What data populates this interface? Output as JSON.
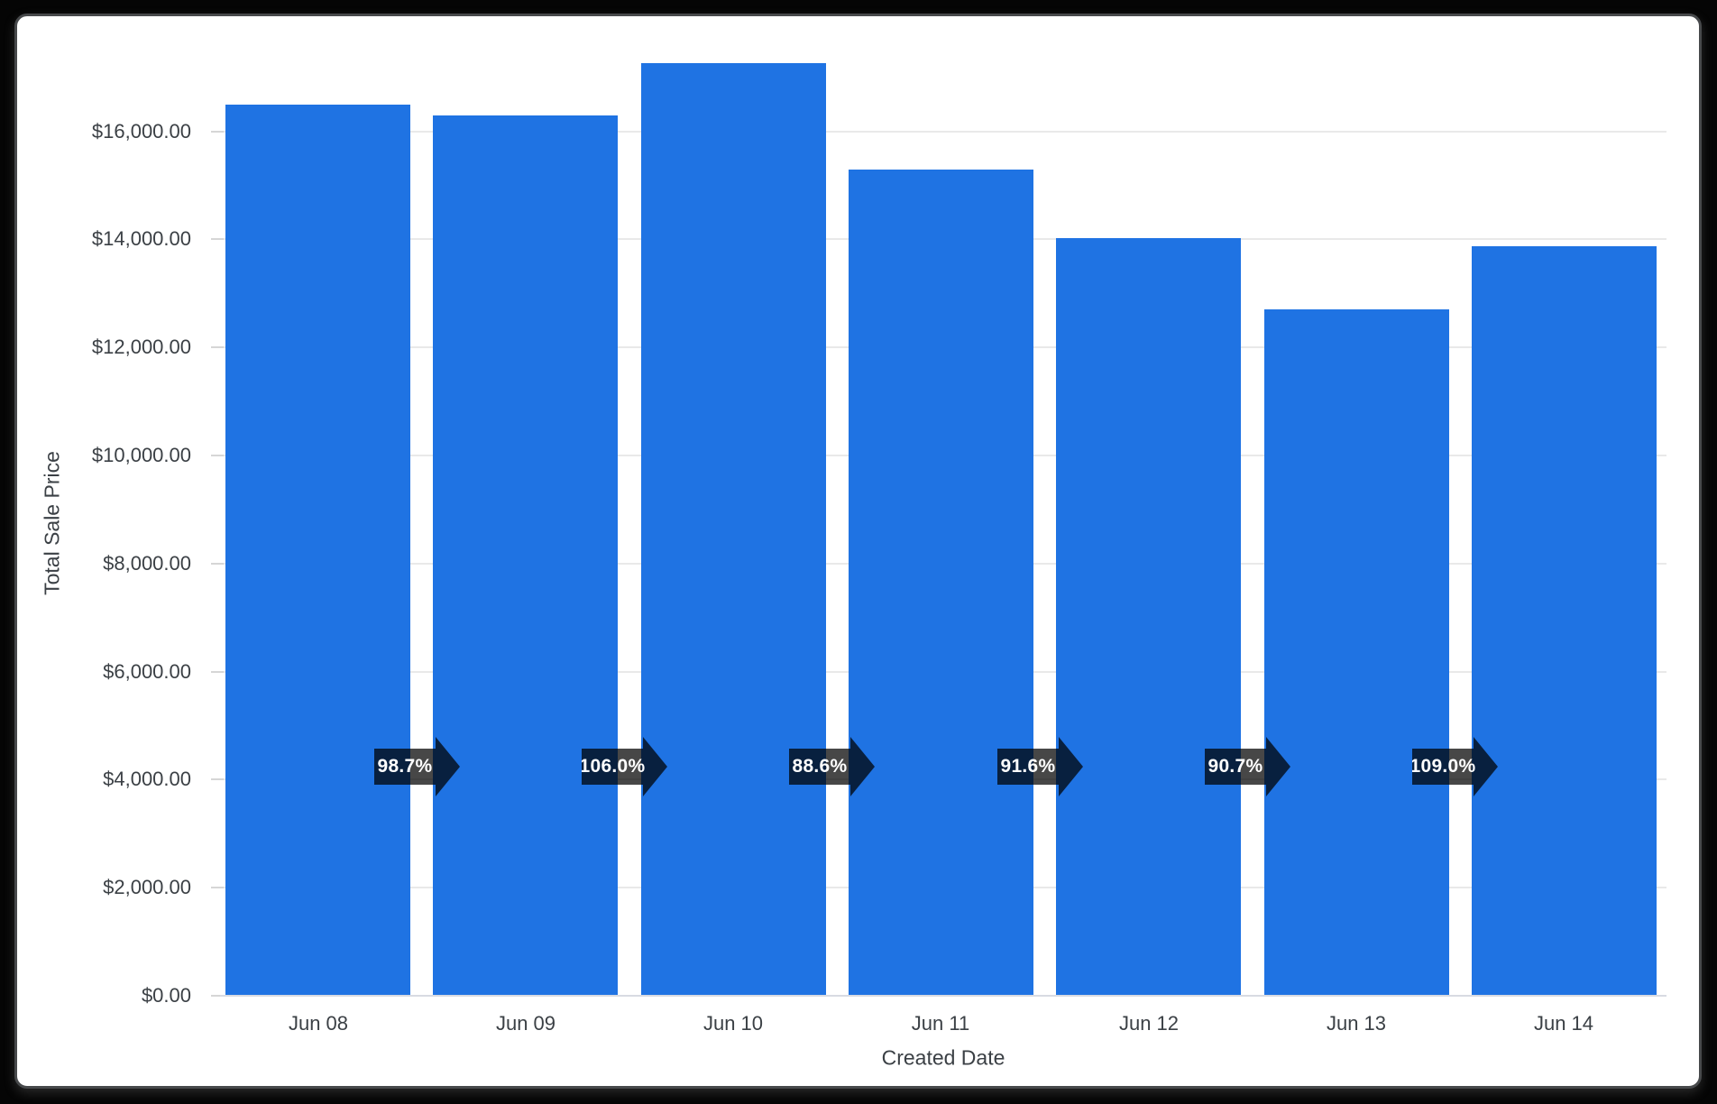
{
  "window": {
    "background_color": "#050505",
    "card_background": "#ffffff",
    "card_border_color": "#47494b"
  },
  "chart_data": {
    "type": "bar",
    "title": "",
    "xlabel": "Created Date",
    "ylabel": "Total Sale Price",
    "categories": [
      "Jun 08",
      "Jun 09",
      "Jun 10",
      "Jun 11",
      "Jun 12",
      "Jun 13",
      "Jun 14"
    ],
    "values": [
      16500,
      16290,
      17270,
      15300,
      14020,
      12710,
      13870
    ],
    "growth_labels": [
      "98.7%",
      "106.0%",
      "88.6%",
      "91.6%",
      "90.7%",
      "109.0%"
    ],
    "y_ticks": [
      {
        "value": 0,
        "label": "$0.00"
      },
      {
        "value": 2000,
        "label": "$2,000.00"
      },
      {
        "value": 4000,
        "label": "$4,000.00"
      },
      {
        "value": 6000,
        "label": "$6,000.00"
      },
      {
        "value": 8000,
        "label": "$8,000.00"
      },
      {
        "value": 10000,
        "label": "$10,000.00"
      },
      {
        "value": 12000,
        "label": "$12,000.00"
      },
      {
        "value": 14000,
        "label": "$14,000.00"
      },
      {
        "value": 16000,
        "label": "$16,000.00"
      }
    ],
    "ylim": [
      0,
      17430
    ],
    "grid": true,
    "legend": "none",
    "colors": {
      "bar": "#1f73e3",
      "arrow_overlay": "rgba(0,0,0,0.72)",
      "axis_text": "#3b4045",
      "gridline": "#e9e9e9",
      "baseline": "#d8dbe2"
    }
  }
}
